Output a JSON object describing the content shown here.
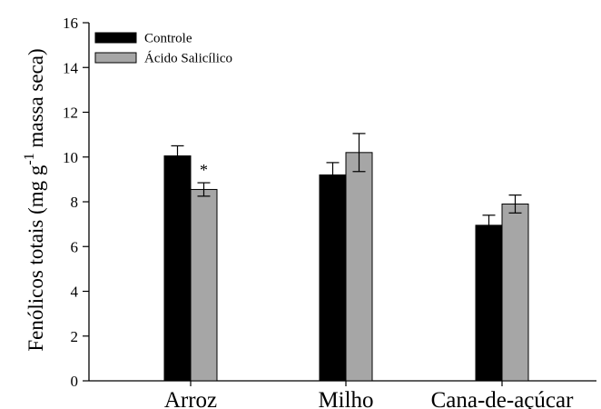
{
  "chart_data": {
    "type": "bar",
    "title": "",
    "xlabel": "",
    "ylabel": {
      "prefix": "Fenólicos totais (mg g",
      "superscript": "-1",
      "suffix": " massa seca)"
    },
    "categories": [
      "Arroz",
      "Milho",
      "Cana-de-açúcar"
    ],
    "ylim": [
      0,
      16
    ],
    "yticks": [
      0,
      2,
      4,
      6,
      8,
      10,
      12,
      14,
      16
    ],
    "series": [
      {
        "name": "Controle",
        "color": "#000000",
        "values": [
          10.05,
          9.2,
          6.95
        ],
        "errors": [
          0.45,
          0.55,
          0.45
        ]
      },
      {
        "name": "Ácido Salicílico",
        "color": "#a6a6a6",
        "values": [
          8.55,
          10.2,
          7.9
        ],
        "errors": [
          0.3,
          0.85,
          0.4
        ]
      }
    ],
    "annotations": [
      {
        "text": "*",
        "category": 0,
        "series": 1
      }
    ],
    "legend_position": "top-left",
    "grid": false
  }
}
